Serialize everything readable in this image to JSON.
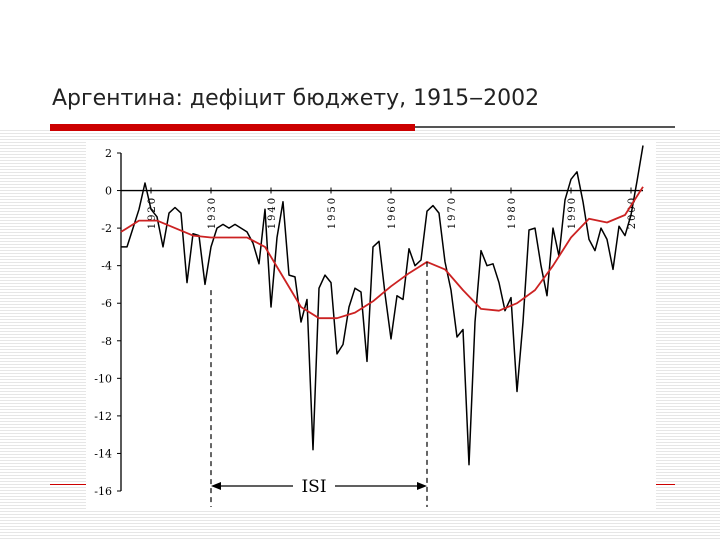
{
  "slide": {
    "title": "Аргентина: дефіцит бюджету, 1915‒2002"
  },
  "chart_data": {
    "type": "line",
    "title": "",
    "xlabel": "",
    "ylabel": "",
    "xlim": [
      1915,
      2002
    ],
    "ylim": [
      -16,
      2
    ],
    "y_ticks": [
      "2",
      "0",
      "-2",
      "-4",
      "-6",
      "-8",
      "-10",
      "-12",
      "-14",
      "-16"
    ],
    "x_ticks": [
      "1920",
      "1930",
      "1940",
      "1950",
      "1960",
      "1970",
      "1980",
      "1990",
      "2000"
    ],
    "grid": false,
    "legend": "none",
    "annotation": {
      "label": "ISI",
      "start": 1930,
      "end": 1966
    },
    "series": [
      {
        "color": "#000000",
        "x": [
          1915,
          1916,
          1917,
          1918,
          1919,
          1920,
          1921,
          1922,
          1923,
          1924,
          1925,
          1926,
          1927,
          1928,
          1929,
          1930,
          1931,
          1932,
          1933,
          1934,
          1935,
          1936,
          1937,
          1938,
          1939,
          1940,
          1941,
          1942,
          1943,
          1944,
          1945,
          1946,
          1947,
          1948,
          1949,
          1950,
          1951,
          1952,
          1953,
          1954,
          1955,
          1956,
          1957,
          1958,
          1959,
          1960,
          1961,
          1962,
          1963,
          1964,
          1965,
          1966,
          1967,
          1968,
          1969,
          1970,
          1971,
          1972,
          1973,
          1974,
          1975,
          1976,
          1977,
          1978,
          1979,
          1980,
          1981,
          1982,
          1983,
          1984,
          1985,
          1986,
          1987,
          1988,
          1989,
          1990,
          1991,
          1992,
          1993,
          1994,
          1995,
          1996,
          1997,
          1998,
          1999,
          2000,
          2001,
          2002
        ],
        "values": [
          -3.0,
          -3.0,
          -2.0,
          -1.0,
          0.4,
          -1.0,
          -1.4,
          -3.0,
          -1.2,
          -0.9,
          -1.2,
          -4.9,
          -2.3,
          -2.4,
          -5.0,
          -3.0,
          -2.0,
          -1.8,
          -2.0,
          -1.8,
          -2.0,
          -2.2,
          -2.8,
          -3.9,
          -1.0,
          -6.2,
          -2.5,
          -0.6,
          -4.5,
          -4.6,
          -7.0,
          -5.8,
          -13.8,
          -5.2,
          -4.5,
          -4.9,
          -8.7,
          -8.2,
          -6.2,
          -5.2,
          -5.4,
          -9.1,
          -3.0,
          -2.7,
          -5.5,
          -7.9,
          -5.6,
          -5.8,
          -3.1,
          -4.0,
          -3.7,
          -1.1,
          -0.8,
          -1.2,
          -3.8,
          -5.3,
          -7.8,
          -7.4,
          -14.6,
          -7.0,
          -3.2,
          -4.0,
          -3.9,
          -4.9,
          -6.4,
          -5.7,
          -10.7,
          -7.0,
          -2.1,
          -2.0,
          -4.0,
          -5.6,
          -2.0,
          -3.5,
          -0.5,
          0.6,
          1.0,
          -0.6,
          -2.6,
          -3.2,
          -2.0,
          -2.6,
          -4.2,
          -1.9,
          -2.4,
          -1.3,
          0.5,
          2.4
        ]
      },
      {
        "color": "#cc2222",
        "x": [
          1915,
          1918,
          1921,
          1924,
          1927,
          1930,
          1933,
          1936,
          1939,
          1942,
          1945,
          1948,
          1951,
          1954,
          1957,
          1960,
          1963,
          1966,
          1969,
          1972,
          1975,
          1978,
          1981,
          1984,
          1987,
          1990,
          1993,
          1996,
          1999,
          2002
        ],
        "values": [
          -2.2,
          -1.6,
          -1.6,
          -2.0,
          -2.4,
          -2.5,
          -2.5,
          -2.5,
          -3.0,
          -4.6,
          -6.2,
          -6.8,
          -6.8,
          -6.5,
          -5.9,
          -5.1,
          -4.4,
          -3.8,
          -4.2,
          -5.3,
          -6.3,
          -6.4,
          -6.0,
          -5.3,
          -4.0,
          -2.5,
          -1.5,
          -1.7,
          -1.3,
          0.2
        ]
      }
    ]
  }
}
